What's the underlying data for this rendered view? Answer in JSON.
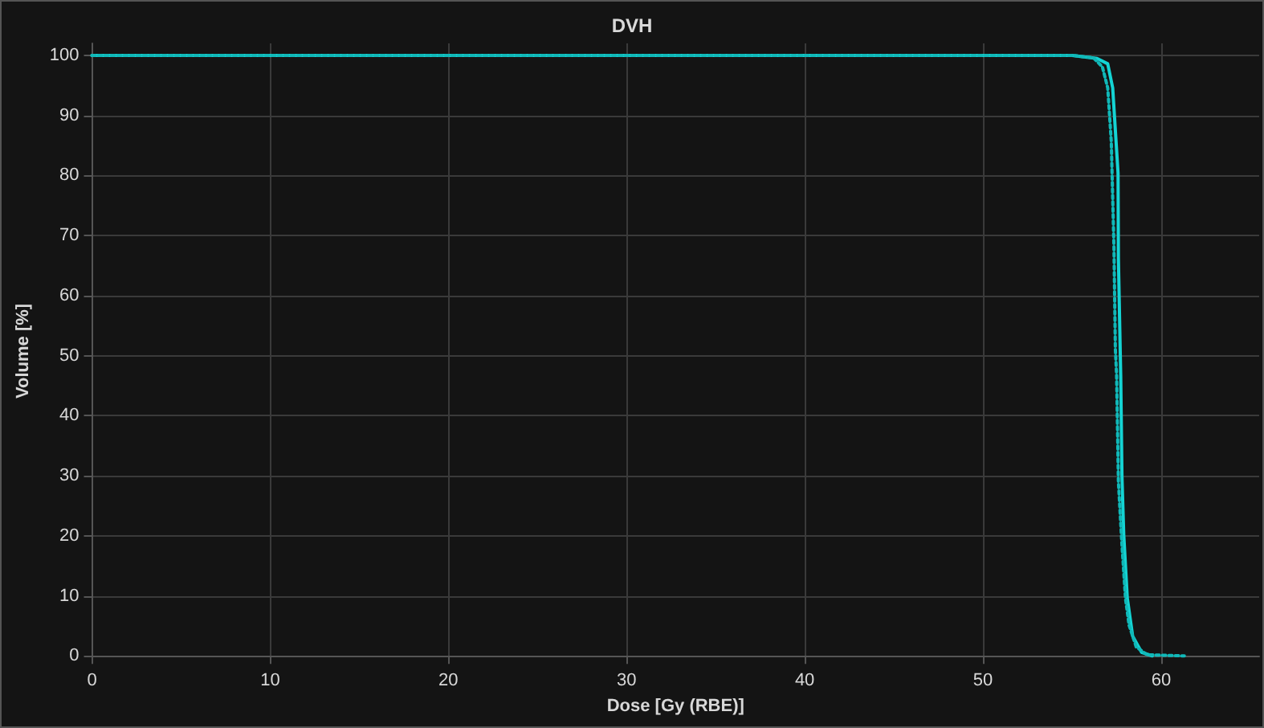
{
  "chart_data": {
    "type": "line",
    "title": "DVH",
    "xlabel": "Dose [Gy (RBE)]",
    "ylabel": "Volume [%]",
    "xlim": [
      0,
      65.5
    ],
    "xticks": [
      0,
      10,
      20,
      30,
      40,
      50,
      60
    ],
    "ylim": [
      -0.5,
      102
    ],
    "yticks": [
      0,
      10,
      20,
      30,
      40,
      50,
      60,
      70,
      80,
      90,
      100
    ],
    "grid": true,
    "marker": "none",
    "series": [
      {
        "color": "#14d4d4",
        "line_style": "solid",
        "x": [
          0,
          55,
          56.4,
          57.0,
          57.28,
          57.43,
          57.58,
          57.6,
          57.7,
          57.73,
          57.8,
          57.9,
          58.1,
          58.4,
          58.9,
          59.5
        ],
        "values": [
          100,
          100,
          99.5,
          98.6,
          94.6,
          87.5,
          80.4,
          66.2,
          51.1,
          46.8,
          29.9,
          20.2,
          9.6,
          3.3,
          0.6,
          0
        ]
      },
      {
        "color": "#10b8b8",
        "line_style": "dotted",
        "x": [
          0,
          55,
          56.2,
          56.7,
          57.0,
          57.2,
          57.35,
          57.43,
          57.5,
          57.6,
          57.8,
          58.0,
          58.2,
          58.6,
          59.2,
          61.3
        ],
        "values": [
          100,
          100,
          99.6,
          98.1,
          94.6,
          85.7,
          68,
          51.1,
          46.7,
          29,
          18.4,
          9.5,
          5.1,
          1.5,
          0.2,
          0
        ]
      }
    ]
  }
}
